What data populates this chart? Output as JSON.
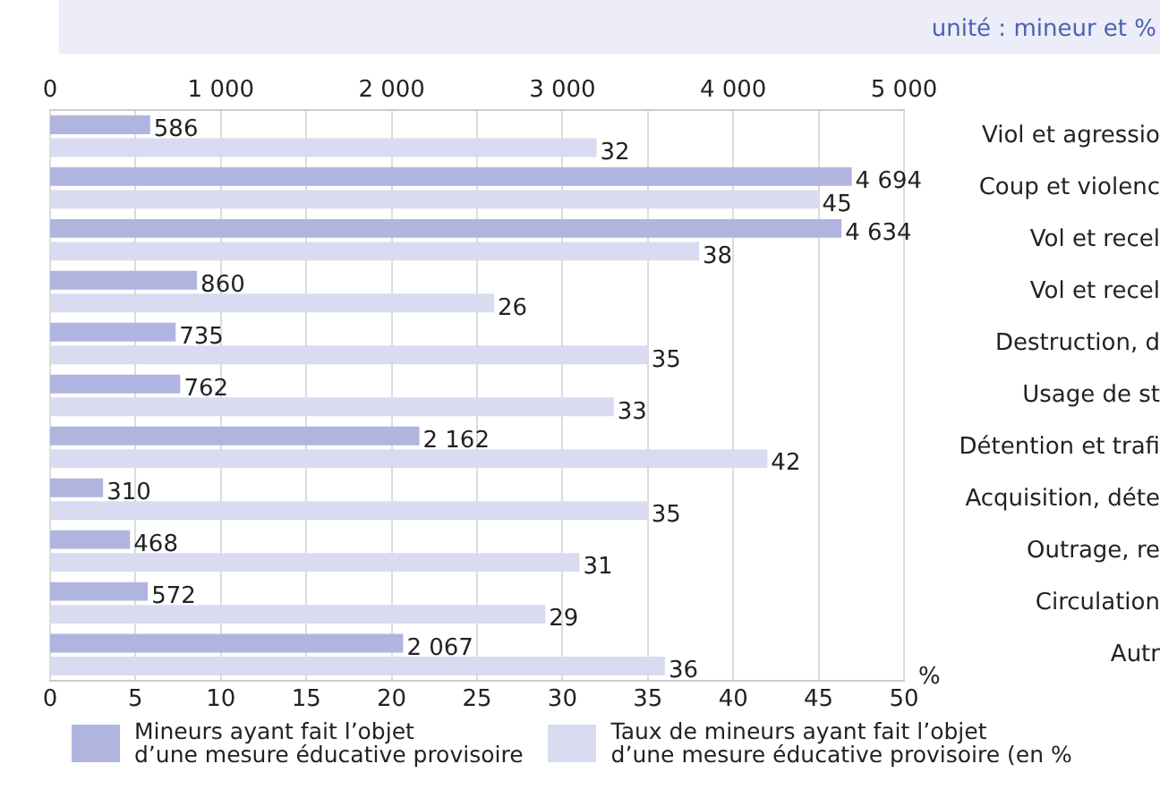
{
  "chart_data": {
    "type": "bar",
    "orientation": "horizontal",
    "subtitle": "unité : mineur et %",
    "xlabel": "%",
    "categories": [
      "Viol et agressio",
      "Coup et violenc",
      "Vol et recel",
      "Vol et recel",
      "Destruction, d",
      "Usage de st",
      "Détention et trafi",
      "Acquisition, déte",
      "Outrage, re",
      "Circulation",
      "Autr"
    ],
    "series": [
      {
        "name": "Mineurs ayant fait l’objet d’une mesure éducative provisoire",
        "color": "#b0b5e0",
        "axis": "x2",
        "values": [
          586,
          4694,
          4634,
          860,
          735,
          762,
          2162,
          310,
          468,
          572,
          2067
        ],
        "value_labels": [
          "586",
          "4 694",
          "4 634",
          "860",
          "735",
          "762",
          "2 162",
          "310",
          "468",
          "572",
          "2 067"
        ]
      },
      {
        "name": "Taux de mineurs ayant fait l’objet d’une mesure éducative provisoire (en %",
        "color": "#d9dcf0",
        "values": [
          32,
          45,
          38,
          26,
          35,
          33,
          42,
          35,
          31,
          29,
          36
        ],
        "value_labels": [
          "32",
          "45",
          "38",
          "26",
          "35",
          "33",
          "42",
          "35",
          "31",
          "29",
          "36"
        ]
      }
    ],
    "xlim": [
      0,
      50
    ],
    "xticks": [
      0,
      5,
      10,
      15,
      20,
      25,
      30,
      35,
      40,
      45,
      50
    ],
    "x2lim": [
      0,
      5000
    ],
    "x2ticks": [
      0,
      {
        "value": 1000,
        "label": "1 000"
      },
      {
        "value": 2000,
        "label": "2 000"
      },
      {
        "value": 3000,
        "label": "3 000"
      },
      {
        "value": 4000,
        "label": "4 000"
      },
      {
        "value": 5000,
        "label": "5 000"
      }
    ],
    "grid": "x",
    "legend": "bottom"
  }
}
